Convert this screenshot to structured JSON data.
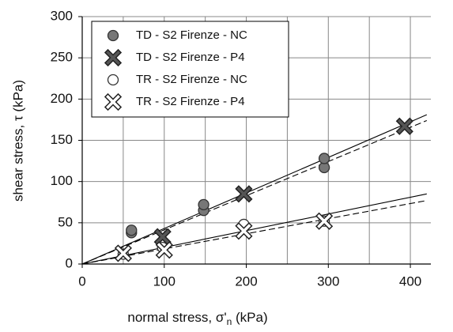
{
  "chart_data": {
    "type": "scatter",
    "x_label": [
      "normal stress, σ'",
      "n",
      " (kPa)"
    ],
    "y_label": "shear stress, τ (kPa)",
    "xlim": [
      0,
      425
    ],
    "ylim": [
      0,
      300
    ],
    "xticks": [
      0,
      100,
      200,
      300,
      400
    ],
    "x_grid": [
      50,
      100,
      150,
      200,
      250,
      300,
      350,
      400
    ],
    "yticks": [
      0,
      50,
      100,
      150,
      200,
      250,
      300
    ],
    "grid": true,
    "legend": "upper left",
    "series": [
      {
        "name": "TD - S2 Firenze - NC",
        "marker": "circle",
        "color": "#777777",
        "x": [
          60,
          60,
          148,
          148,
          295,
          295
        ],
        "values": [
          38,
          41,
          65,
          72,
          117,
          128
        ]
      },
      {
        "name": "TD - S2 Firenze - P4",
        "marker": "x",
        "color": "#555555",
        "x": [
          98,
          197,
          393
        ],
        "values": [
          33,
          85,
          167
        ]
      },
      {
        "name": "TR - S2 Firenze - NC",
        "marker": "circle",
        "color": "#ffffff",
        "x": [
          50,
          98,
          197,
          295
        ],
        "values": [
          12,
          20,
          48,
          52
        ]
      },
      {
        "name": "TR - S2 Firenze - P4",
        "marker": "x",
        "color": "#ffffff",
        "x": [
          50,
          100,
          197,
          295
        ],
        "values": [
          13,
          17,
          40,
          52
        ]
      }
    ],
    "fit_lines": [
      {
        "style": "solid",
        "x": [
          0,
          420
        ],
        "y": [
          0,
          181
        ]
      },
      {
        "style": "dashed",
        "x": [
          0,
          420
        ],
        "y": [
          0,
          174
        ]
      },
      {
        "style": "solid",
        "x": [
          0,
          420
        ],
        "y": [
          0,
          85
        ]
      },
      {
        "style": "dashed",
        "x": [
          0,
          420
        ],
        "y": [
          0,
          77
        ]
      }
    ]
  }
}
